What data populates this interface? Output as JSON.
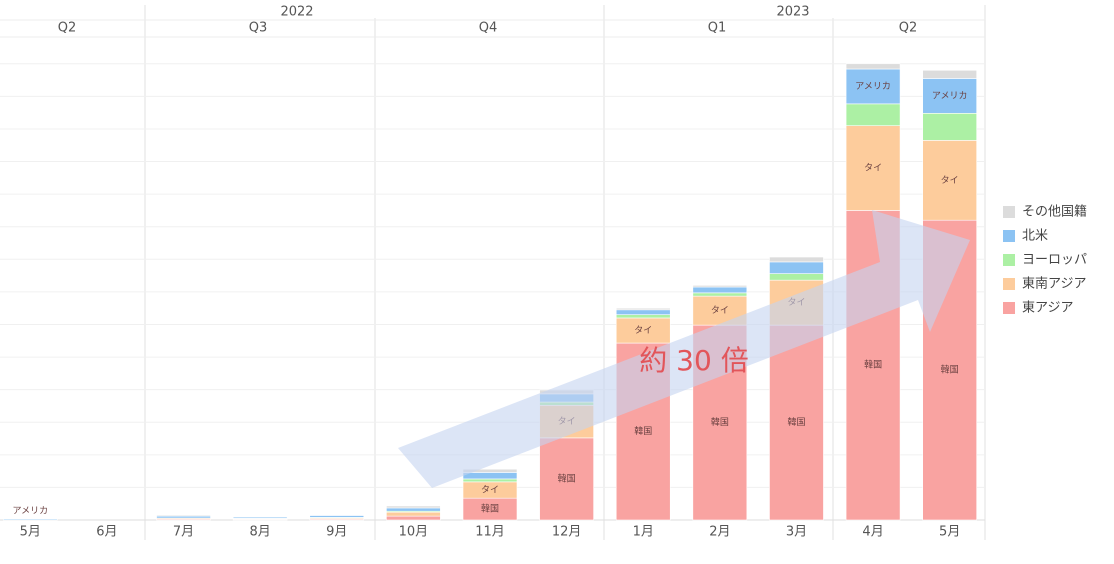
{
  "chart_data": {
    "type": "stacked_bar",
    "years": [
      "2022",
      "2023"
    ],
    "quarters": [
      "Q2",
      "Q3",
      "Q4",
      "Q1",
      "Q2"
    ],
    "categories": [
      "5月",
      "6月",
      "7月",
      "8月",
      "9月",
      "10月",
      "11月",
      "12月",
      "1月",
      "2月",
      "3月",
      "4月",
      "5月"
    ],
    "series": [
      {
        "name": "東アジア",
        "color": "#f9a3a1",
        "values": [
          0,
          0,
          0.03,
          0.02,
          0.03,
          0.12,
          0.67,
          2.52,
          5.43,
          5.98,
          5.98,
          9.5,
          9.2
        ],
        "labels": [
          null,
          null,
          null,
          null,
          null,
          null,
          "韓国",
          "韓国",
          "韓国",
          "韓国",
          "韓国",
          "韓国",
          "韓国"
        ]
      },
      {
        "name": "東南アジア",
        "color": "#fdcc9c",
        "values": [
          0,
          0,
          0.03,
          0.02,
          0.03,
          0.12,
          0.5,
          1.0,
          0.77,
          0.89,
          1.38,
          2.6,
          2.45
        ],
        "labels": [
          null,
          null,
          null,
          null,
          null,
          null,
          "タイ",
          "タイ",
          "タイ",
          "タイ",
          "タイ",
          "タイ",
          "タイ"
        ]
      },
      {
        "name": "ヨーロッパ",
        "color": "#acf0a4",
        "values": [
          0,
          0,
          0,
          0.01,
          0.02,
          0.03,
          0.09,
          0.1,
          0.1,
          0.1,
          0.2,
          0.67,
          0.83
        ],
        "labels": [
          null,
          null,
          null,
          null,
          null,
          null,
          null,
          null,
          null,
          null,
          null,
          null,
          null
        ]
      },
      {
        "name": "北米",
        "color": "#8cc3f3",
        "values": [
          0.03,
          0,
          0.06,
          0.04,
          0.06,
          0.1,
          0.2,
          0.25,
          0.15,
          0.18,
          0.36,
          1.07,
          1.07
        ],
        "labels": [
          "アメリカ",
          null,
          null,
          null,
          null,
          null,
          null,
          null,
          null,
          null,
          null,
          "アメリカ",
          "アメリカ"
        ]
      },
      {
        "name": "その他国籍",
        "color": "#dcdcdc",
        "values": [
          0,
          0,
          0.03,
          0.01,
          0.01,
          0.06,
          0.1,
          0.12,
          0.05,
          0.05,
          0.15,
          0.16,
          0.25
        ],
        "labels": [
          null,
          null,
          null,
          null,
          null,
          null,
          null,
          null,
          null,
          null,
          null,
          null,
          null
        ]
      }
    ],
    "annotation": "約 30 倍",
    "ylim": [
      0,
      14.3
    ],
    "yticks": [
      1,
      2,
      3,
      4,
      5,
      6,
      7,
      8,
      9,
      10,
      11,
      12,
      13,
      14
    ],
    "grid": true
  }
}
